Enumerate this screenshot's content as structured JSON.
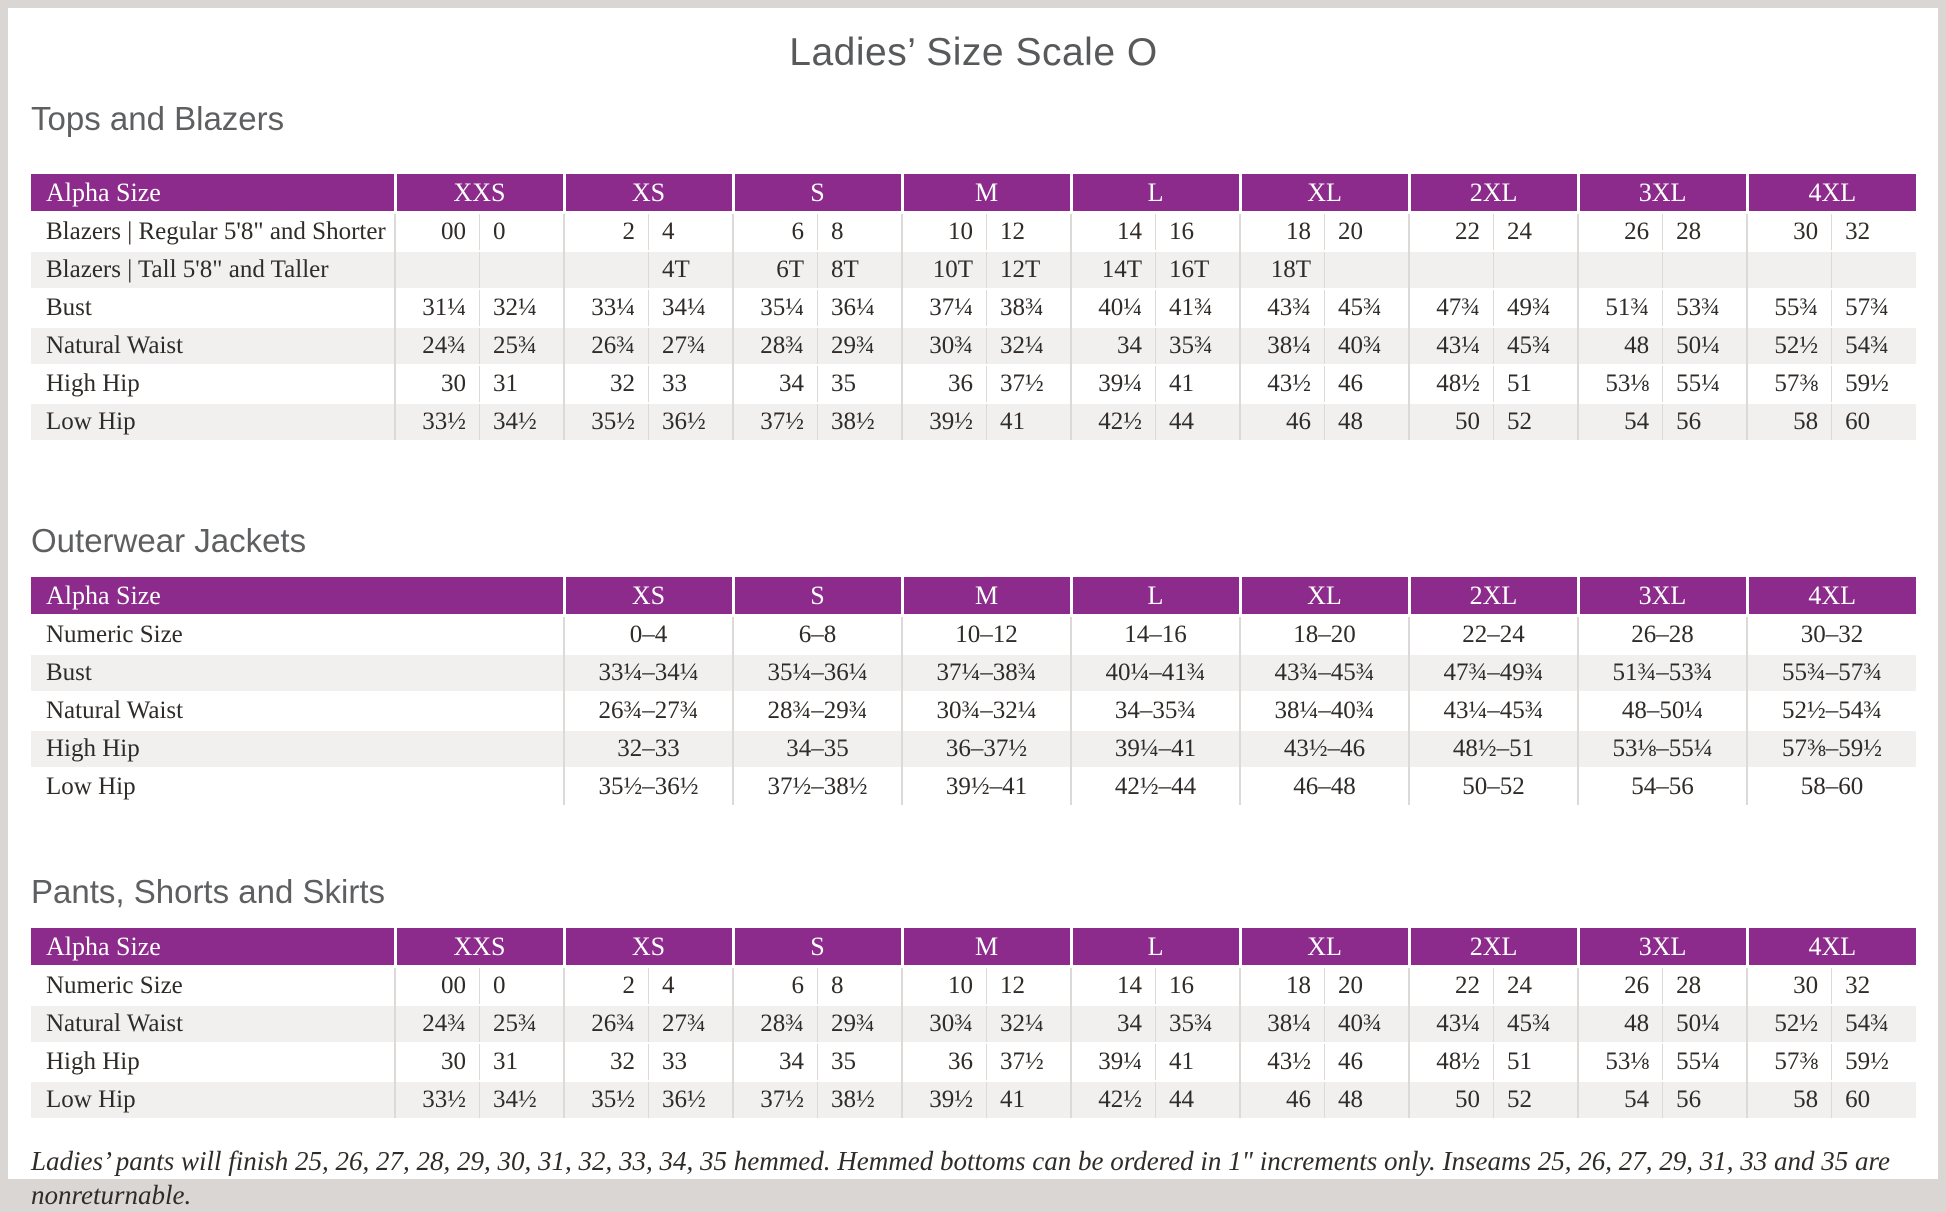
{
  "page_title": "Ladies’ Size Scale O",
  "colors": {
    "header_purple": "#8c2b8c",
    "row_stripe": "#f2f0ee",
    "frame_gray": "#d9d6d4",
    "divider_gray": "#ddd9d6"
  },
  "sections": [
    {
      "heading": "Tops and Blazers",
      "table": {
        "header_label": "Alpha Size",
        "split_columns": true,
        "sizes": [
          "XXS",
          "XS",
          "S",
          "M",
          "L",
          "XL",
          "2XL",
          "3XL",
          "4XL"
        ],
        "rows": [
          {
            "label": "Blazers | Regular 5'8\" and Shorter",
            "values": [
              [
                "00",
                "0"
              ],
              [
                "2",
                "4"
              ],
              [
                "6",
                "8"
              ],
              [
                "10",
                "12"
              ],
              [
                "14",
                "16"
              ],
              [
                "18",
                "20"
              ],
              [
                "22",
                "24"
              ],
              [
                "26",
                "28"
              ],
              [
                "30",
                "32"
              ]
            ]
          },
          {
            "label": "Blazers | Tall 5'8\" and Taller",
            "values": [
              [
                "",
                ""
              ],
              [
                "",
                "4T"
              ],
              [
                "6T",
                "8T"
              ],
              [
                "10T",
                "12T"
              ],
              [
                "14T",
                "16T"
              ],
              [
                "18T",
                ""
              ],
              [
                "",
                ""
              ],
              [
                "",
                ""
              ],
              [
                "",
                ""
              ]
            ]
          },
          {
            "label": "Bust",
            "values": [
              [
                "31¼",
                "32¼"
              ],
              [
                "33¼",
                "34¼"
              ],
              [
                "35¼",
                "36¼"
              ],
              [
                "37¼",
                "38¾"
              ],
              [
                "40¼",
                "41¾"
              ],
              [
                "43¾",
                "45¾"
              ],
              [
                "47¾",
                "49¾"
              ],
              [
                "51¾",
                "53¾"
              ],
              [
                "55¾",
                "57¾"
              ]
            ]
          },
          {
            "label": "Natural Waist",
            "values": [
              [
                "24¾",
                "25¾"
              ],
              [
                "26¾",
                "27¾"
              ],
              [
                "28¾",
                "29¾"
              ],
              [
                "30¾",
                "32¼"
              ],
              [
                "34",
                "35¾"
              ],
              [
                "38¼",
                "40¾"
              ],
              [
                "43¼",
                "45¾"
              ],
              [
                "48",
                "50¼"
              ],
              [
                "52½",
                "54¾"
              ]
            ]
          },
          {
            "label": "High Hip",
            "values": [
              [
                "30",
                "31"
              ],
              [
                "32",
                "33"
              ],
              [
                "34",
                "35"
              ],
              [
                "36",
                "37½"
              ],
              [
                "39¼",
                "41"
              ],
              [
                "43½",
                "46"
              ],
              [
                "48½",
                "51"
              ],
              [
                "53⅛",
                "55¼"
              ],
              [
                "57⅜",
                "59½"
              ]
            ]
          },
          {
            "label": "Low Hip",
            "values": [
              [
                "33½",
                "34½"
              ],
              [
                "35½",
                "36½"
              ],
              [
                "37½",
                "38½"
              ],
              [
                "39½",
                "41"
              ],
              [
                "42½",
                "44"
              ],
              [
                "46",
                "48"
              ],
              [
                "50",
                "52"
              ],
              [
                "54",
                "56"
              ],
              [
                "58",
                "60"
              ]
            ]
          }
        ]
      }
    },
    {
      "heading": "Outerwear Jackets",
      "table": {
        "header_label": "Alpha Size",
        "split_columns": false,
        "sizes": [
          "XS",
          "S",
          "M",
          "L",
          "XL",
          "2XL",
          "3XL",
          "4XL"
        ],
        "rows": [
          {
            "label": "Numeric Size",
            "values": [
              "0–4",
              "6–8",
              "10–12",
              "14–16",
              "18–20",
              "22–24",
              "26–28",
              "30–32"
            ]
          },
          {
            "label": "Bust",
            "values": [
              "33¼–34¼",
              "35¼–36¼",
              "37¼–38¾",
              "40¼–41¾",
              "43¾–45¾",
              "47¾–49¾",
              "51¾–53¾",
              "55¾–57¾"
            ]
          },
          {
            "label": "Natural Waist",
            "values": [
              "26¾–27¾",
              "28¾–29¾",
              "30¾–32¼",
              "34–35¾",
              "38¼–40¾",
              "43¼–45¾",
              "48–50¼",
              "52½–54¾"
            ]
          },
          {
            "label": "High Hip",
            "values": [
              "32–33",
              "34–35",
              "36–37½",
              "39¼–41",
              "43½–46",
              "48½–51",
              "53⅛–55¼",
              "57⅜–59½"
            ]
          },
          {
            "label": "Low Hip",
            "values": [
              "35½–36½",
              "37½–38½",
              "39½–41",
              "42½–44",
              "46–48",
              "50–52",
              "54–56",
              "58–60"
            ]
          }
        ]
      }
    },
    {
      "heading": "Pants, Shorts and Skirts",
      "table": {
        "header_label": "Alpha Size",
        "split_columns": true,
        "sizes": [
          "XXS",
          "XS",
          "S",
          "M",
          "L",
          "XL",
          "2XL",
          "3XL",
          "4XL"
        ],
        "rows": [
          {
            "label": "Numeric Size",
            "values": [
              [
                "00",
                "0"
              ],
              [
                "2",
                "4"
              ],
              [
                "6",
                "8"
              ],
              [
                "10",
                "12"
              ],
              [
                "14",
                "16"
              ],
              [
                "18",
                "20"
              ],
              [
                "22",
                "24"
              ],
              [
                "26",
                "28"
              ],
              [
                "30",
                "32"
              ]
            ]
          },
          {
            "label": "Natural Waist",
            "values": [
              [
                "24¾",
                "25¾"
              ],
              [
                "26¾",
                "27¾"
              ],
              [
                "28¾",
                "29¾"
              ],
              [
                "30¾",
                "32¼"
              ],
              [
                "34",
                "35¾"
              ],
              [
                "38¼",
                "40¾"
              ],
              [
                "43¼",
                "45¾"
              ],
              [
                "48",
                "50¼"
              ],
              [
                "52½",
                "54¾"
              ]
            ]
          },
          {
            "label": "High Hip",
            "values": [
              [
                "30",
                "31"
              ],
              [
                "32",
                "33"
              ],
              [
                "34",
                "35"
              ],
              [
                "36",
                "37½"
              ],
              [
                "39¼",
                "41"
              ],
              [
                "43½",
                "46"
              ],
              [
                "48½",
                "51"
              ],
              [
                "53⅛",
                "55¼"
              ],
              [
                "57⅜",
                "59½"
              ]
            ]
          },
          {
            "label": "Low Hip",
            "values": [
              [
                "33½",
                "34½"
              ],
              [
                "35½",
                "36½"
              ],
              [
                "37½",
                "38½"
              ],
              [
                "39½",
                "41"
              ],
              [
                "42½",
                "44"
              ],
              [
                "46",
                "48"
              ],
              [
                "50",
                "52"
              ],
              [
                "54",
                "56"
              ],
              [
                "58",
                "60"
              ]
            ]
          }
        ]
      }
    }
  ],
  "footnote": "Ladies’ pants will finish 25, 26, 27, 28, 29, 30, 31, 32, 33, 34, 35 hemmed. Hemmed bottoms can be ordered in 1\" increments only. Inseams 25, 26, 27, 29, 31, 33 and 35 are nonreturnable."
}
